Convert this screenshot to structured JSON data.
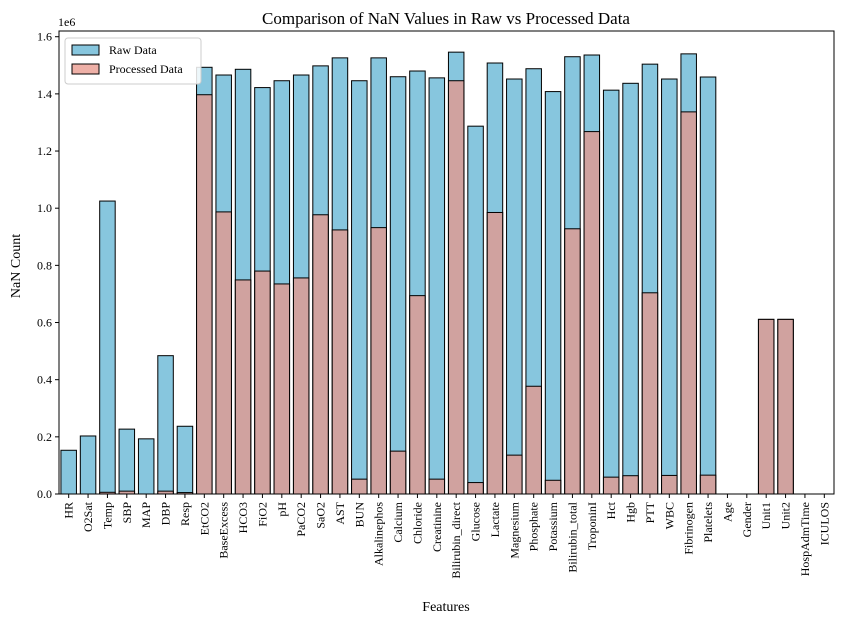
{
  "chart_data": {
    "type": "bar",
    "title": "Comparison of NaN Values in Raw vs Processed Data",
    "xlabel": "Features",
    "ylabel": "NaN Count",
    "y_offset_label": "1e6",
    "ylim": [
      0,
      1620000
    ],
    "y_ticks": [
      0,
      200000,
      400000,
      600000,
      800000,
      1000000,
      1200000,
      1400000,
      1600000
    ],
    "y_tick_labels": [
      "0.0",
      "0.2",
      "0.4",
      "0.6",
      "0.8",
      "1.0",
      "1.2",
      "1.4",
      "1.6"
    ],
    "legend_position": "top-left",
    "categories": [
      "HR",
      "O2Sat",
      "Temp",
      "SBP",
      "MAP",
      "DBP",
      "Resp",
      "EtCO2",
      "BaseExcess",
      "HCO3",
      "FiO2",
      "pH",
      "PaCO2",
      "SaO2",
      "AST",
      "BUN",
      "Alkalinephos",
      "Calcium",
      "Chloride",
      "Creatinine",
      "Bilirubin_direct",
      "Glucose",
      "Lactate",
      "Magnesium",
      "Phosphate",
      "Potassium",
      "Bilirubin_total",
      "TroponinI",
      "Hct",
      "Hgb",
      "PTT",
      "WBC",
      "Fibrinogen",
      "Platelets",
      "Age",
      "Gender",
      "Unit1",
      "Unit2",
      "HospAdmTime",
      "ICULOS"
    ],
    "series": [
      {
        "name": "Raw Data",
        "color": "#87c6de",
        "values": [
          153000,
          203000,
          1025000,
          227000,
          193000,
          484000,
          237000,
          1493000,
          1466000,
          1486000,
          1422000,
          1446000,
          1466000,
          1498000,
          1526000,
          1446000,
          1526000,
          1460000,
          1480000,
          1456000,
          1546000,
          1287000,
          1508000,
          1452000,
          1488000,
          1408000,
          1530000,
          1536000,
          1413000,
          1437000,
          1504000,
          1452000,
          1540000,
          1459000,
          0,
          0,
          611000,
          611000,
          0,
          0
        ]
      },
      {
        "name": "Processed Data",
        "color": "#e8968a",
        "values": [
          0,
          0,
          6000,
          10000,
          0,
          10000,
          5000,
          1397000,
          987000,
          749000,
          780000,
          735000,
          756000,
          977000,
          924000,
          52000,
          932000,
          150000,
          694000,
          52000,
          1446000,
          40000,
          985000,
          136000,
          377000,
          48000,
          928000,
          1268000,
          59000,
          64000,
          704000,
          65000,
          1337000,
          66000,
          0,
          0,
          611000,
          611000,
          0,
          0
        ]
      }
    ]
  }
}
